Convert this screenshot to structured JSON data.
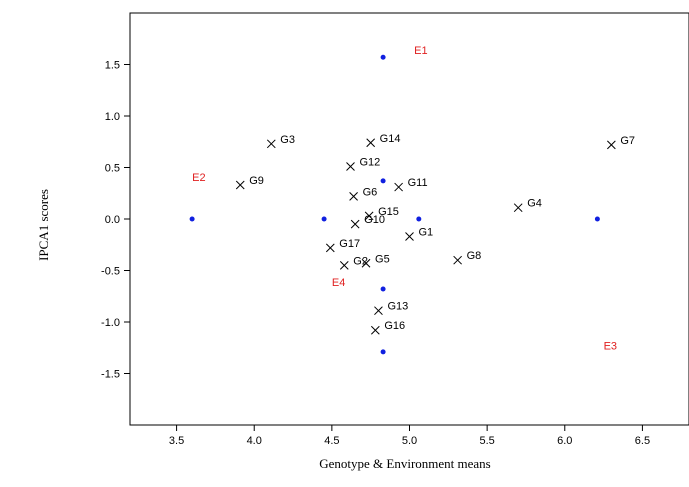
{
  "chart_data": {
    "type": "scatter",
    "title": "",
    "xlabel": "Genotype & Environment means",
    "ylabel": "IPCA1 scores",
    "xlim": [
      3.2,
      6.8
    ],
    "ylim": [
      -2.0,
      2.0
    ],
    "xticks": [
      "3.5",
      "4.0",
      "4.5",
      "5.0",
      "5.5",
      "6.0",
      "6.5"
    ],
    "yticks": [
      "1.5",
      "1.0",
      "0.5",
      "0.0",
      "-0.5",
      "-1.0",
      "-1.5"
    ],
    "grid": false,
    "colors": {
      "genotype_marker": "#000000",
      "environment_dot": "#1020e0",
      "environment_label": "#e02020"
    },
    "genotypes": [
      {
        "label": "G1",
        "x": 5.0,
        "y": -0.17
      },
      {
        "label": "G2",
        "x": 4.58,
        "y": -0.45
      },
      {
        "label": "G3",
        "x": 4.11,
        "y": 0.73
      },
      {
        "label": "G4",
        "x": 5.7,
        "y": 0.11
      },
      {
        "label": "G5",
        "x": 4.72,
        "y": -0.43
      },
      {
        "label": "G6",
        "x": 4.64,
        "y": 0.22
      },
      {
        "label": "G7",
        "x": 6.3,
        "y": 0.72
      },
      {
        "label": "G8",
        "x": 5.31,
        "y": -0.4
      },
      {
        "label": "G9",
        "x": 3.91,
        "y": 0.33
      },
      {
        "label": "G10",
        "x": 4.65,
        "y": -0.05
      },
      {
        "label": "G11",
        "x": 4.93,
        "y": 0.31
      },
      {
        "label": "G12",
        "x": 4.62,
        "y": 0.51
      },
      {
        "label": "G13",
        "x": 4.8,
        "y": -0.89
      },
      {
        "label": "G14",
        "x": 4.75,
        "y": 0.74
      },
      {
        "label": "G15",
        "x": 4.74,
        "y": 0.03
      },
      {
        "label": "G16",
        "x": 4.78,
        "y": -1.08
      },
      {
        "label": "G17",
        "x": 4.49,
        "y": -0.28
      }
    ],
    "environments": [
      {
        "label": "E1",
        "x": 4.83,
        "y": 1.57,
        "label_x": 5.03,
        "label_y": 1.64
      },
      {
        "label": "E2",
        "x": 3.6,
        "y": 0.0,
        "label_x": 3.6,
        "label_y": 0.41
      },
      {
        "label": "E3",
        "x": 6.21,
        "y": 0.0,
        "label_x": 6.25,
        "label_y": -1.23
      },
      {
        "label": "E4",
        "x": 4.83,
        "y": -0.68,
        "label_x": 4.5,
        "label_y": -0.61
      }
    ],
    "extra_points": [
      {
        "x": 4.45,
        "y": 0.0
      },
      {
        "x": 5.06,
        "y": 0.0
      },
      {
        "x": 4.83,
        "y": 0.37
      },
      {
        "x": 4.83,
        "y": -1.29
      }
    ]
  }
}
